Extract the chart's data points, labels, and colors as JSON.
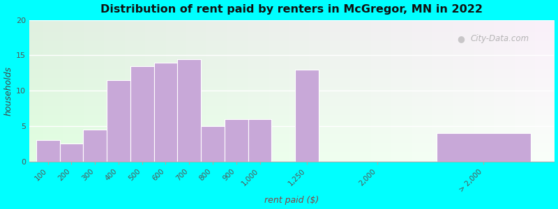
{
  "title": "Distribution of rent paid by renters in McGregor, MN in 2022",
  "xlabel": "rent paid ($)",
  "ylabel": "households",
  "bar_color": "#C8A8D8",
  "bar_edgecolor": "#ffffff",
  "background_outer": "#00FFFF",
  "ylim": [
    0,
    20
  ],
  "yticks": [
    0,
    5,
    10,
    15,
    20
  ],
  "categories": [
    "100",
    "200",
    "300",
    "400",
    "500",
    "600",
    "700",
    "800",
    "900",
    "1,000",
    "1,250",
    "2,000",
    "> 2,000"
  ],
  "values": [
    3,
    2.5,
    4.5,
    11.5,
    13.5,
    14,
    14.5,
    5,
    6,
    6,
    13,
    0,
    4
  ],
  "bar_positions": [
    0,
    1,
    2,
    3,
    4,
    5,
    6,
    7,
    8,
    9,
    11,
    14,
    17
  ],
  "bar_widths": [
    1,
    1,
    1,
    1,
    1,
    1,
    1,
    1,
    1,
    1,
    1,
    1,
    4
  ],
  "tick_positions": [
    0.5,
    1.5,
    2.5,
    3.5,
    4.5,
    5.5,
    6.5,
    7.5,
    8.5,
    9.5,
    11.5,
    14.5,
    19
  ],
  "watermark": "City-Data.com",
  "xlim": [
    -0.3,
    22
  ]
}
